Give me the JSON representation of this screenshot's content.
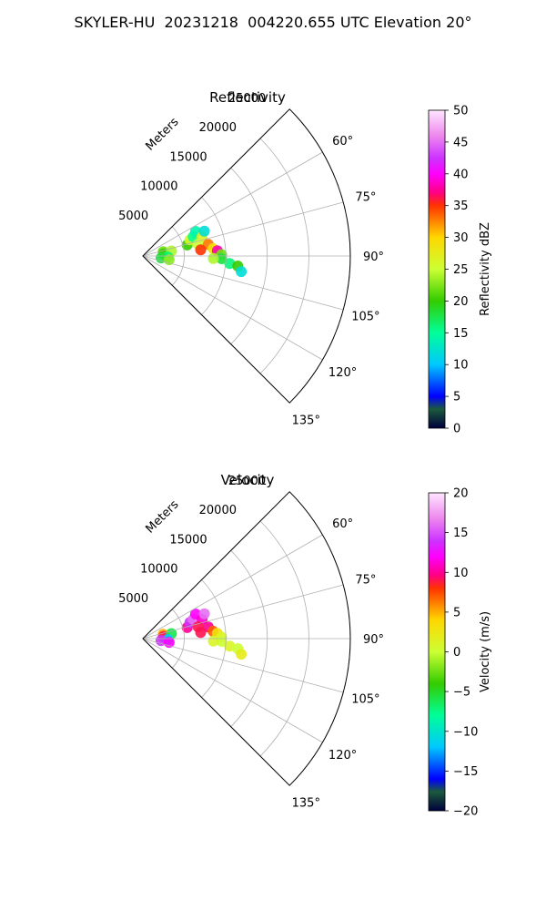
{
  "figure": {
    "title": "SKYLER-HU  20231218  004220.655 UTC Elevation 20°"
  },
  "chart_data": [
    {
      "type": "polar-sector-ppi",
      "title": "Reflectivity",
      "range_label": "Meters",
      "range_ticks": [
        5000,
        10000,
        15000,
        20000,
        25000
      ],
      "range_tick_labels": [
        "5000",
        "10000",
        "15000",
        "20000",
        "25000"
      ],
      "rlim": [
        0,
        25000
      ],
      "azimuth_range_deg": [
        45,
        135
      ],
      "azimuth_ticks": [
        60,
        75,
        90,
        105,
        120,
        135
      ],
      "azimuth_tick_labels": [
        "60°",
        "75°",
        "90°",
        "105°",
        "120°",
        "135°"
      ],
      "grid": true,
      "colorbar": {
        "label": "Reflectivity dBZ",
        "min": 0,
        "max": 50,
        "ticks": [
          0,
          5,
          10,
          15,
          20,
          25,
          30,
          35,
          40,
          45,
          50
        ],
        "tick_labels": [
          "0",
          "5",
          "10",
          "15",
          "20",
          "25",
          "30",
          "35",
          "40",
          "45",
          "50"
        ],
        "colormap": "pyart_NWSRef"
      },
      "echoes": [
        {
          "range": 2500,
          "azimuth": 78,
          "value": 22
        },
        {
          "range": 2500,
          "azimuth": 84,
          "value": 20
        },
        {
          "range": 3500,
          "azimuth": 80,
          "value": 24
        },
        {
          "range": 3000,
          "azimuth": 92,
          "value": 16
        },
        {
          "range": 2200,
          "azimuth": 96,
          "value": 18
        },
        {
          "range": 3200,
          "azimuth": 98,
          "value": 23
        },
        {
          "range": 5500,
          "azimuth": 76,
          "value": 20
        },
        {
          "range": 6000,
          "azimuth": 71,
          "value": 26
        },
        {
          "range": 6500,
          "azimuth": 69,
          "value": 15
        },
        {
          "range": 7000,
          "azimuth": 65,
          "value": 14
        },
        {
          "range": 7500,
          "azimuth": 72,
          "value": 27
        },
        {
          "range": 6800,
          "azimuth": 78,
          "value": 25
        },
        {
          "range": 8000,
          "azimuth": 80,
          "value": 33
        },
        {
          "range": 8500,
          "azimuth": 84,
          "value": 29
        },
        {
          "range": 9000,
          "azimuth": 86,
          "value": 38
        },
        {
          "range": 7000,
          "azimuth": 84,
          "value": 35
        },
        {
          "range": 9500,
          "azimuth": 89,
          "value": 22
        },
        {
          "range": 9500,
          "azimuth": 92,
          "value": 18
        },
        {
          "range": 10500,
          "azimuth": 95,
          "value": 16
        },
        {
          "range": 11500,
          "azimuth": 96,
          "value": 20
        },
        {
          "range": 12000,
          "azimuth": 99,
          "value": 12
        },
        {
          "range": 8500,
          "azimuth": 92,
          "value": 24
        },
        {
          "range": 8000,
          "azimuth": 68,
          "value": 12
        }
      ]
    },
    {
      "type": "polar-sector-ppi",
      "title": "Velocity",
      "range_label": "Meters",
      "range_ticks": [
        5000,
        10000,
        15000,
        20000,
        25000
      ],
      "range_tick_labels": [
        "5000",
        "10000",
        "15000",
        "20000",
        "25000"
      ],
      "rlim": [
        0,
        25000
      ],
      "azimuth_range_deg": [
        45,
        135
      ],
      "azimuth_ticks": [
        60,
        75,
        90,
        105,
        120,
        135
      ],
      "azimuth_tick_labels": [
        "60°",
        "75°",
        "90°",
        "105°",
        "120°",
        "135°"
      ],
      "grid": true,
      "colorbar": {
        "label": "Velocity (m/s)",
        "min": -20,
        "max": 20,
        "ticks": [
          -20,
          -15,
          -10,
          -5,
          0,
          5,
          10,
          15,
          20
        ],
        "tick_labels": [
          "−20",
          "−15",
          "−10",
          "−5",
          "0",
          "5",
          "10",
          "15",
          "20"
        ],
        "colormap": "pyart_BuDRd18"
      },
      "echoes": [
        {
          "range": 2500,
          "azimuth": 78,
          "value": 5
        },
        {
          "range": 2500,
          "azimuth": 84,
          "value": 9
        },
        {
          "range": 3500,
          "azimuth": 80,
          "value": -6
        },
        {
          "range": 3000,
          "azimuth": 92,
          "value": -12
        },
        {
          "range": 2200,
          "azimuth": 96,
          "value": 14
        },
        {
          "range": 3200,
          "azimuth": 98,
          "value": 12
        },
        {
          "range": 5500,
          "azimuth": 76,
          "value": 10
        },
        {
          "range": 6000,
          "azimuth": 71,
          "value": 14
        },
        {
          "range": 6500,
          "azimuth": 69,
          "value": 16
        },
        {
          "range": 7000,
          "azimuth": 65,
          "value": 12
        },
        {
          "range": 7500,
          "azimuth": 72,
          "value": 11
        },
        {
          "range": 6800,
          "azimuth": 78,
          "value": 9
        },
        {
          "range": 8000,
          "azimuth": 80,
          "value": 10
        },
        {
          "range": 8500,
          "azimuth": 84,
          "value": 7
        },
        {
          "range": 9000,
          "azimuth": 86,
          "value": 3
        },
        {
          "range": 7000,
          "azimuth": 84,
          "value": 9
        },
        {
          "range": 9500,
          "azimuth": 89,
          "value": 1
        },
        {
          "range": 9500,
          "azimuth": 92,
          "value": 0
        },
        {
          "range": 10500,
          "azimuth": 95,
          "value": 1
        },
        {
          "range": 11500,
          "azimuth": 96,
          "value": 0
        },
        {
          "range": 12000,
          "azimuth": 99,
          "value": 2
        },
        {
          "range": 8500,
          "azimuth": 92,
          "value": 1
        },
        {
          "range": 8000,
          "azimuth": 68,
          "value": 16
        }
      ]
    }
  ]
}
